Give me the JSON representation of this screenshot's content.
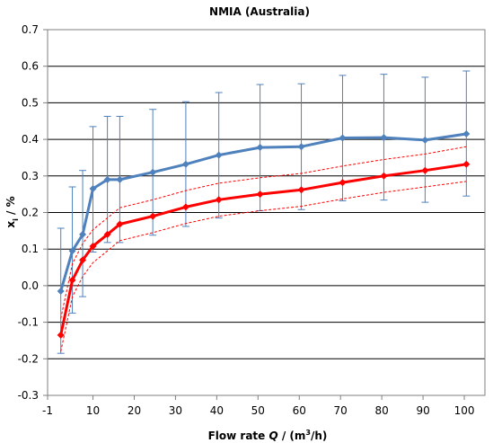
{
  "chart_data": {
    "type": "line",
    "title": "NMIA (Australia)",
    "xlabel": {
      "prefix": "Flow rate ",
      "var": "Q",
      "mid": " / (m",
      "sup": "3",
      "suffix": "/h)"
    },
    "ylabel": {
      "main": "x",
      "sub": "i",
      "suffix": " / %"
    },
    "xlim": [
      -1,
      105
    ],
    "ylim": [
      -0.3,
      0.7
    ],
    "x_ticks": [
      -1,
      10,
      20,
      30,
      40,
      50,
      60,
      70,
      80,
      90,
      100
    ],
    "x_tick_labels": [
      "-1",
      "10",
      "20",
      "30",
      "40",
      "50",
      "60",
      "70",
      "80",
      "90",
      "100"
    ],
    "y_ticks": [
      -0.3,
      -0.2,
      -0.1,
      0.0,
      0.1,
      0.2,
      0.3,
      0.4,
      0.5,
      0.6,
      0.7
    ],
    "y_tick_labels": [
      "-0.3",
      "-0.2",
      "-0.1",
      "0.0",
      "0.1",
      "0.2",
      "0.3",
      "0.4",
      "0.5",
      "0.6",
      "0.7"
    ],
    "grid": {
      "horizontal": true,
      "vertical": false
    },
    "series": [
      {
        "color": "#4f81bd",
        "marker": "diamond",
        "x": [
          2.2,
          5,
          7.5,
          10,
          13.5,
          16.5,
          24.5,
          32.5,
          40.5,
          50.5,
          60.5,
          70.5,
          80.5,
          90.5,
          100.5
        ],
        "y": [
          -0.015,
          0.095,
          0.14,
          0.265,
          0.29,
          0.29,
          0.31,
          0.332,
          0.357,
          0.378,
          0.38,
          0.404,
          0.405,
          0.398,
          0.415
        ],
        "err_upper": [
          0.157,
          0.27,
          0.315,
          0.435,
          0.463,
          0.463,
          0.482,
          0.503,
          0.528,
          0.55,
          0.552,
          0.575,
          0.578,
          0.57,
          0.587
        ],
        "err_lower": [
          -0.185,
          -0.075,
          -0.03,
          0.092,
          0.118,
          0.118,
          0.138,
          0.162,
          0.185,
          0.205,
          0.208,
          0.232,
          0.234,
          0.228,
          0.245
        ]
      },
      {
        "color": "#ff0000",
        "marker": "diamond",
        "x": [
          2.2,
          5,
          7.5,
          10,
          13.5,
          16.5,
          24.5,
          32.5,
          40.5,
          50.5,
          60.5,
          70.5,
          80.5,
          90.5,
          100.5
        ],
        "y": [
          -0.135,
          0.015,
          0.07,
          0.108,
          0.14,
          0.168,
          0.19,
          0.215,
          0.235,
          0.25,
          0.262,
          0.282,
          0.3,
          0.315,
          0.332
        ],
        "band_upper": [
          -0.09,
          0.06,
          0.115,
          0.153,
          0.185,
          0.213,
          0.235,
          0.26,
          0.28,
          0.295,
          0.307,
          0.327,
          0.345,
          0.36,
          0.38
        ],
        "band_lower": [
          -0.18,
          -0.03,
          0.025,
          0.063,
          0.095,
          0.123,
          0.145,
          0.17,
          0.19,
          0.205,
          0.217,
          0.237,
          0.255,
          0.27,
          0.285
        ]
      }
    ]
  }
}
